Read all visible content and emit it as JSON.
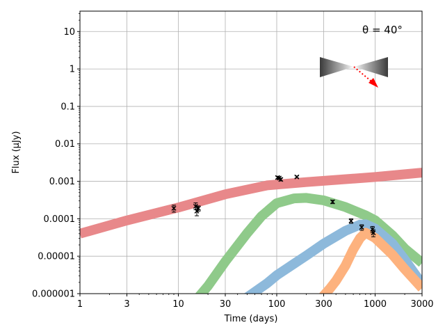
{
  "chart_data": {
    "type": "line",
    "title": "",
    "xlabel": "Time (days)",
    "ylabel": "Flux (μJy)",
    "xscale": "log",
    "yscale": "log",
    "xlim": [
      1,
      3000
    ],
    "ylim": [
      1e-06,
      35
    ],
    "grid": true,
    "x_ticks": [
      {
        "value": 1,
        "label": "1"
      },
      {
        "value": 3,
        "label": "3"
      },
      {
        "value": 10,
        "label": "10"
      },
      {
        "value": 30,
        "label": "30"
      },
      {
        "value": 100,
        "label": "100"
      },
      {
        "value": 300,
        "label": "300"
      },
      {
        "value": 1000,
        "label": "1000"
      },
      {
        "value": 3000,
        "label": "3000"
      }
    ],
    "y_ticks": [
      {
        "value": 1e-06,
        "label": "0.000001"
      },
      {
        "value": 1e-05,
        "label": "0.00001"
      },
      {
        "value": 0.0001,
        "label": "0.0001"
      },
      {
        "value": 0.001,
        "label": "0.001"
      },
      {
        "value": 0.01,
        "label": "0.01"
      },
      {
        "value": 0.1,
        "label": "0.1"
      },
      {
        "value": 1,
        "label": "1"
      },
      {
        "value": 10,
        "label": "10"
      }
    ],
    "annotation": {
      "text": "θ = 40°"
    },
    "series": [
      {
        "color": "#e8888a",
        "points": [
          [
            1,
            4e-05
          ],
          [
            3,
            9e-05
          ],
          [
            10,
            0.0002
          ],
          [
            30,
            0.00045
          ],
          [
            80,
            0.00078
          ],
          [
            200,
            0.00095
          ],
          [
            1000,
            0.0013
          ],
          [
            3000,
            0.0017
          ]
        ]
      },
      {
        "color": "#8fca8a",
        "points": [
          [
            16,
            8e-07
          ],
          [
            20,
            1.6e-06
          ],
          [
            30,
            7.2e-06
          ],
          [
            50,
            4.1e-05
          ],
          [
            70,
            0.000117
          ],
          [
            100,
            0.00026
          ],
          [
            150,
            0.00035
          ],
          [
            200,
            0.00036
          ],
          [
            300,
            0.00031
          ],
          [
            500,
            0.000205
          ],
          [
            800,
            0.000123
          ],
          [
            1000,
            9.1e-05
          ],
          [
            1500,
            3.6e-05
          ],
          [
            2000,
            1.6e-05
          ],
          [
            3000,
            6.6e-06
          ]
        ]
      },
      {
        "color": "#8db9db",
        "points": [
          [
            50,
            8e-07
          ],
          [
            80,
            1.9e-06
          ],
          [
            100,
            3.1e-06
          ],
          [
            150,
            6.3e-06
          ],
          [
            200,
            1.04e-05
          ],
          [
            300,
            2.16e-05
          ],
          [
            500,
            4.77e-05
          ],
          [
            700,
            6.93e-05
          ],
          [
            800,
            7.11e-05
          ],
          [
            1000,
            5.47e-05
          ],
          [
            1500,
            2.19e-05
          ],
          [
            2000,
            8.1e-06
          ],
          [
            3000,
            1.8e-06
          ]
        ]
      },
      {
        "color": "#fdb27e",
        "points": [
          [
            290,
            8e-07
          ],
          [
            350,
            1.4e-06
          ],
          [
            400,
            2.2e-06
          ],
          [
            500,
            5.6e-06
          ],
          [
            600,
            1.52e-05
          ],
          [
            700,
            3.01e-05
          ],
          [
            800,
            4.25e-05
          ],
          [
            1000,
            3.07e-05
          ],
          [
            1500,
            1.1e-05
          ],
          [
            2000,
            4.5e-06
          ],
          [
            3000,
            1.4e-06
          ]
        ]
      }
    ],
    "observations": [
      {
        "x": 9,
        "y": 0.00019,
        "err_low": 4e-05,
        "err_high": 4e-05
      },
      {
        "x": 15,
        "y": 0.000215,
        "err_low": 4e-05,
        "err_high": 5e-05
      },
      {
        "x": 15.4,
        "y": 0.00016,
        "err_low": 4e-05,
        "err_high": 5e-05
      },
      {
        "x": 16,
        "y": 0.00019,
        "err_low": 3e-05,
        "err_high": 3e-05
      },
      {
        "x": 102,
        "y": 0.00126,
        "err_low": 0.0001,
        "err_high": 0.0001
      },
      {
        "x": 106,
        "y": 0.00122,
        "err_low": 0.0001,
        "err_high": 0.0001
      },
      {
        "x": 110,
        "y": 0.00112,
        "err_low": 0.0001,
        "err_high": 0.0001
      },
      {
        "x": 160,
        "y": 0.00131,
        "err_low": 8e-05,
        "err_high": 8e-05
      },
      {
        "x": 370,
        "y": 0.000283,
        "err_low": 3e-05,
        "err_high": 3e-05
      },
      {
        "x": 570,
        "y": 8.75e-05,
        "err_low": 1.2e-05,
        "err_high": 1.2e-05
      },
      {
        "x": 730,
        "y": 5.91e-05,
        "err_low": 1e-05,
        "err_high": 1e-05
      },
      {
        "x": 940,
        "y": 5.23e-05,
        "err_low": 1e-05,
        "err_high": 1e-05
      },
      {
        "x": 960,
        "y": 4.2e-05,
        "err_low": 9e-06,
        "err_high": 9e-06
      }
    ],
    "inset": {
      "description_icon": "jet-cone-icon",
      "arrow_color": "#ff0000",
      "line_of_sight_color": "#ff0000"
    }
  }
}
